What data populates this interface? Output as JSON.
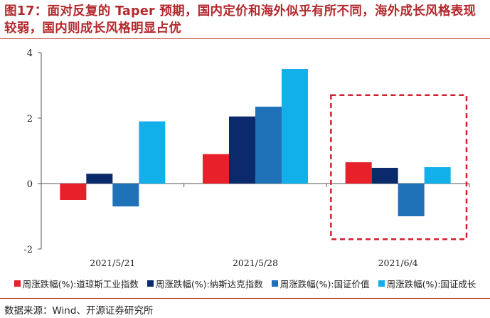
{
  "title": "图17：面对反复的 Taper 预期，国内定价和海外似乎有所不同，海外成长风格表现较弱，国内则成长风格明显占优",
  "source": "数据来源：Wind、开源证券研究所",
  "colors": {
    "title": "#b3282d",
    "highlight_box": "#d0202e"
  },
  "chart_data": {
    "type": "bar",
    "categories": [
      "2021/5/21",
      "2021/5/28",
      "2021/6/4"
    ],
    "ylim": [
      -2,
      4
    ],
    "yticks": [
      "-2",
      "0",
      "2",
      "4"
    ],
    "grid": false,
    "legend_position": "bottom",
    "highlight_category": "2021/6/4",
    "series": [
      {
        "name": "周涨跌幅(%):道琼斯工业指数",
        "color": "#e8202a",
        "values": [
          -0.5,
          0.9,
          0.65
        ]
      },
      {
        "name": "周涨跌幅(%):纳斯达克指数",
        "color": "#0b2a6b",
        "values": [
          0.3,
          2.05,
          0.48
        ]
      },
      {
        "name": "周涨跌幅(%):国证价值",
        "color": "#1f72b8",
        "values": [
          -0.7,
          2.35,
          -1.0
        ]
      },
      {
        "name": "周涨跌幅(%):国证成长",
        "color": "#12b0ea",
        "values": [
          1.9,
          3.5,
          0.5
        ]
      }
    ]
  }
}
